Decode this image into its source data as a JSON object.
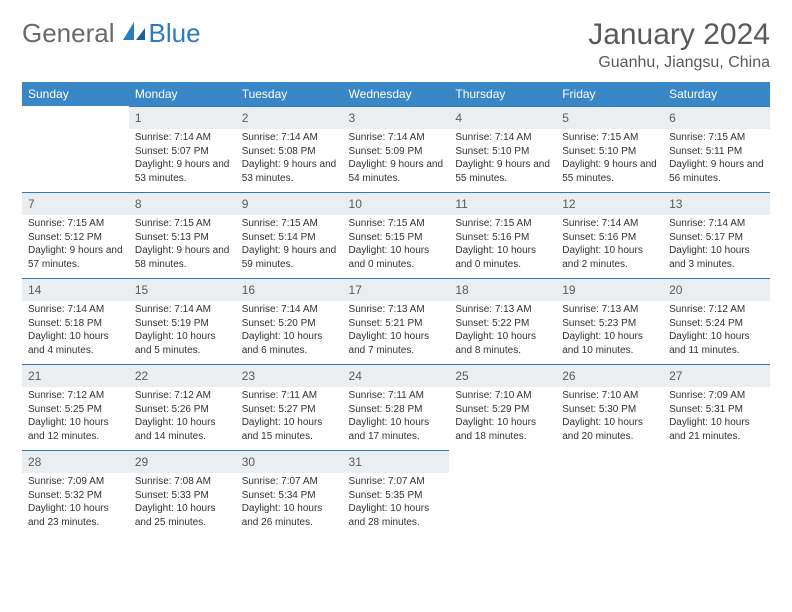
{
  "brand": {
    "part1": "General",
    "part2": "Blue"
  },
  "title": "January 2024",
  "location": "Guanhu, Jiangsu, China",
  "colors": {
    "header_bg": "#3a87c8",
    "daynum_bg": "#ebeef0",
    "rule": "#2b7bbf",
    "text": "#333333",
    "muted": "#5a5a5a",
    "brand_gray": "#6a6a6a",
    "brand_blue": "#2b7bbf",
    "page_bg": "#ffffff"
  },
  "weekdays": [
    "Sunday",
    "Monday",
    "Tuesday",
    "Wednesday",
    "Thursday",
    "Friday",
    "Saturday"
  ],
  "weeks": [
    [
      null,
      {
        "n": "1",
        "sr": "7:14 AM",
        "ss": "5:07 PM",
        "dl": "9 hours and 53 minutes."
      },
      {
        "n": "2",
        "sr": "7:14 AM",
        "ss": "5:08 PM",
        "dl": "9 hours and 53 minutes."
      },
      {
        "n": "3",
        "sr": "7:14 AM",
        "ss": "5:09 PM",
        "dl": "9 hours and 54 minutes."
      },
      {
        "n": "4",
        "sr": "7:14 AM",
        "ss": "5:10 PM",
        "dl": "9 hours and 55 minutes."
      },
      {
        "n": "5",
        "sr": "7:15 AM",
        "ss": "5:10 PM",
        "dl": "9 hours and 55 minutes."
      },
      {
        "n": "6",
        "sr": "7:15 AM",
        "ss": "5:11 PM",
        "dl": "9 hours and 56 minutes."
      }
    ],
    [
      {
        "n": "7",
        "sr": "7:15 AM",
        "ss": "5:12 PM",
        "dl": "9 hours and 57 minutes."
      },
      {
        "n": "8",
        "sr": "7:15 AM",
        "ss": "5:13 PM",
        "dl": "9 hours and 58 minutes."
      },
      {
        "n": "9",
        "sr": "7:15 AM",
        "ss": "5:14 PM",
        "dl": "9 hours and 59 minutes."
      },
      {
        "n": "10",
        "sr": "7:15 AM",
        "ss": "5:15 PM",
        "dl": "10 hours and 0 minutes."
      },
      {
        "n": "11",
        "sr": "7:15 AM",
        "ss": "5:16 PM",
        "dl": "10 hours and 0 minutes."
      },
      {
        "n": "12",
        "sr": "7:14 AM",
        "ss": "5:16 PM",
        "dl": "10 hours and 2 minutes."
      },
      {
        "n": "13",
        "sr": "7:14 AM",
        "ss": "5:17 PM",
        "dl": "10 hours and 3 minutes."
      }
    ],
    [
      {
        "n": "14",
        "sr": "7:14 AM",
        "ss": "5:18 PM",
        "dl": "10 hours and 4 minutes."
      },
      {
        "n": "15",
        "sr": "7:14 AM",
        "ss": "5:19 PM",
        "dl": "10 hours and 5 minutes."
      },
      {
        "n": "16",
        "sr": "7:14 AM",
        "ss": "5:20 PM",
        "dl": "10 hours and 6 minutes."
      },
      {
        "n": "17",
        "sr": "7:13 AM",
        "ss": "5:21 PM",
        "dl": "10 hours and 7 minutes."
      },
      {
        "n": "18",
        "sr": "7:13 AM",
        "ss": "5:22 PM",
        "dl": "10 hours and 8 minutes."
      },
      {
        "n": "19",
        "sr": "7:13 AM",
        "ss": "5:23 PM",
        "dl": "10 hours and 10 minutes."
      },
      {
        "n": "20",
        "sr": "7:12 AM",
        "ss": "5:24 PM",
        "dl": "10 hours and 11 minutes."
      }
    ],
    [
      {
        "n": "21",
        "sr": "7:12 AM",
        "ss": "5:25 PM",
        "dl": "10 hours and 12 minutes."
      },
      {
        "n": "22",
        "sr": "7:12 AM",
        "ss": "5:26 PM",
        "dl": "10 hours and 14 minutes."
      },
      {
        "n": "23",
        "sr": "7:11 AM",
        "ss": "5:27 PM",
        "dl": "10 hours and 15 minutes."
      },
      {
        "n": "24",
        "sr": "7:11 AM",
        "ss": "5:28 PM",
        "dl": "10 hours and 17 minutes."
      },
      {
        "n": "25",
        "sr": "7:10 AM",
        "ss": "5:29 PM",
        "dl": "10 hours and 18 minutes."
      },
      {
        "n": "26",
        "sr": "7:10 AM",
        "ss": "5:30 PM",
        "dl": "10 hours and 20 minutes."
      },
      {
        "n": "27",
        "sr": "7:09 AM",
        "ss": "5:31 PM",
        "dl": "10 hours and 21 minutes."
      }
    ],
    [
      {
        "n": "28",
        "sr": "7:09 AM",
        "ss": "5:32 PM",
        "dl": "10 hours and 23 minutes."
      },
      {
        "n": "29",
        "sr": "7:08 AM",
        "ss": "5:33 PM",
        "dl": "10 hours and 25 minutes."
      },
      {
        "n": "30",
        "sr": "7:07 AM",
        "ss": "5:34 PM",
        "dl": "10 hours and 26 minutes."
      },
      {
        "n": "31",
        "sr": "7:07 AM",
        "ss": "5:35 PM",
        "dl": "10 hours and 28 minutes."
      },
      null,
      null,
      null
    ]
  ],
  "labels": {
    "sunrise": "Sunrise: ",
    "sunset": "Sunset: ",
    "daylight": "Daylight: "
  }
}
